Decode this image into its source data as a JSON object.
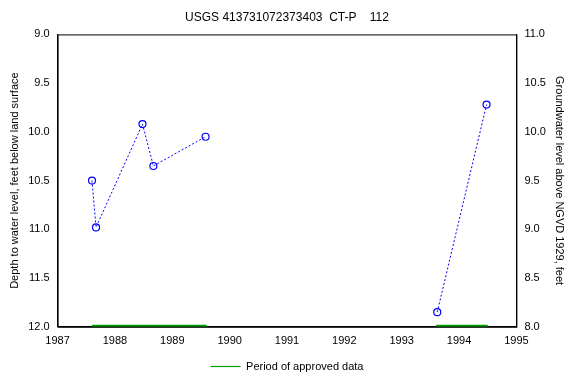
{
  "chart_data": {
    "type": "line",
    "title": "USGS 413731072373403  CT-P    112",
    "y_label": "Depth to water level, feet below land surface",
    "y2_label": "Groundwater level above NGVD 1929, feet",
    "xlim": [
      1987,
      1995
    ],
    "xticks": [
      1987,
      1988,
      1989,
      1990,
      1991,
      1992,
      1993,
      1994,
      1995
    ],
    "ylim": [
      12,
      9
    ],
    "yticks": [
      {
        "value": 9,
        "label": "9.0"
      },
      9.5,
      {
        "value": 10,
        "label": "10.0"
      },
      10.5,
      {
        "value": 11,
        "label": "11.0"
      },
      11.5,
      {
        "value": 12,
        "label": "12.0"
      }
    ],
    "y2lim": [
      8,
      11
    ],
    "y2ticks": [
      {
        "value": 8,
        "label": "8.0"
      },
      8.5,
      {
        "value": 9,
        "label": "9.0"
      },
      9.5,
      {
        "value": 10,
        "label": "10.0"
      },
      10.5,
      {
        "value": 11,
        "label": "11.0"
      }
    ],
    "grid": false,
    "legend": "bottom",
    "series": [
      {
        "color": "#0000ff",
        "marker": "circle",
        "line_style": "dotted",
        "x": [
          1987.6,
          1987.67,
          1988.48,
          1988.67,
          1989.58,
          null,
          1993.62,
          1994.48
        ],
        "values": [
          10.5,
          10.98,
          9.92,
          10.35,
          10.05,
          null,
          11.85,
          9.72
        ]
      },
      {
        "name": "Period of approved data",
        "color": "#00a000",
        "marker": "none",
        "line_style": "solid",
        "x": [
          1987.6,
          1989.6,
          null,
          1993.6,
          1994.5
        ],
        "values": [
          12,
          12,
          null,
          12,
          12
        ]
      }
    ]
  }
}
